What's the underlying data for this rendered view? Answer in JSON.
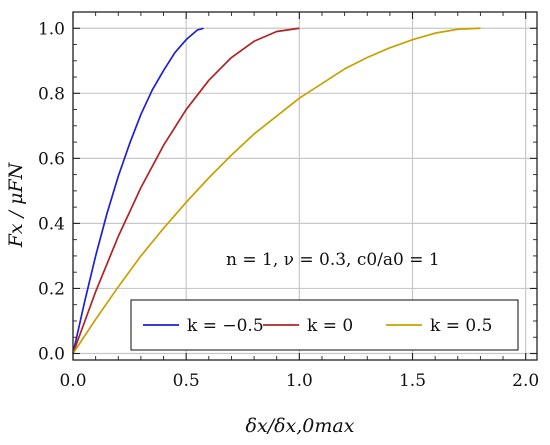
{
  "chart_data": {
    "type": "line",
    "title": "",
    "xlabel": "δx/δx,0max",
    "ylabel": "Fx / μFN",
    "xlim": [
      0,
      2.05
    ],
    "ylim": [
      -0.02,
      1.05
    ],
    "xticks": [
      0.0,
      0.5,
      1.0,
      1.5,
      2.0
    ],
    "xtick_labels": [
      "0.0",
      "0.5",
      "1.0",
      "1.5",
      "2.0"
    ],
    "yticks": [
      0.0,
      0.2,
      0.4,
      0.6,
      0.8,
      1.0
    ],
    "ytick_labels": [
      "0.0",
      "0.2",
      "0.4",
      "0.6",
      "0.8",
      "1.0"
    ],
    "grid": true,
    "legend_position": "bottom-right",
    "annotation": "n = 1, ν = 0.3, c0/a0 = 1",
    "series": [
      {
        "name": "k = −0.5",
        "color": "#1f1fd6",
        "x": [
          0.0,
          0.05,
          0.1,
          0.15,
          0.2,
          0.25,
          0.3,
          0.35,
          0.4,
          0.45,
          0.5,
          0.55,
          0.577
        ],
        "y": [
          0.0,
          0.155,
          0.3,
          0.43,
          0.545,
          0.645,
          0.735,
          0.81,
          0.87,
          0.925,
          0.965,
          0.995,
          1.0
        ]
      },
      {
        "name": "k = 0",
        "color": "#b22222",
        "x": [
          0.0,
          0.1,
          0.2,
          0.3,
          0.4,
          0.5,
          0.6,
          0.7,
          0.8,
          0.9,
          1.0
        ],
        "y": [
          0.0,
          0.19,
          0.36,
          0.51,
          0.64,
          0.75,
          0.84,
          0.91,
          0.96,
          0.99,
          1.0
        ]
      },
      {
        "name": "k = 0.5",
        "color": "#c9a000",
        "x": [
          0.0,
          0.1,
          0.2,
          0.3,
          0.4,
          0.5,
          0.6,
          0.7,
          0.8,
          0.9,
          1.0,
          1.1,
          1.2,
          1.3,
          1.4,
          1.5,
          1.6,
          1.7,
          1.8
        ],
        "y": [
          0.0,
          0.105,
          0.205,
          0.3,
          0.385,
          0.465,
          0.54,
          0.61,
          0.675,
          0.73,
          0.785,
          0.83,
          0.875,
          0.91,
          0.94,
          0.965,
          0.985,
          0.997,
          1.0
        ]
      }
    ]
  }
}
